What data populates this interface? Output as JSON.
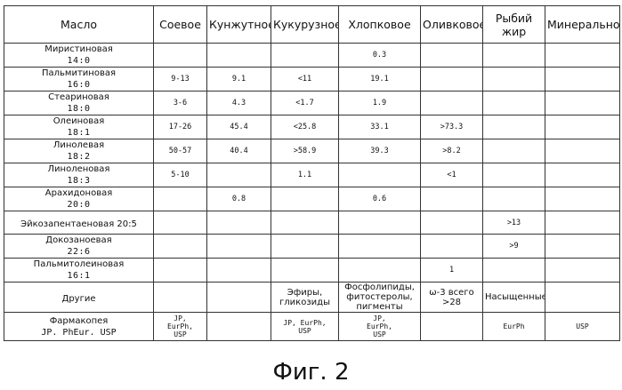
{
  "table": {
    "corner": "Масло",
    "columns": [
      "Соевое",
      "Кунжутное",
      "Кукурузное",
      "Хлопковое",
      "Оливковое",
      "Рыбий жир",
      "Минеральное"
    ],
    "rows": [
      {
        "name": "Миристиновая",
        "code": "14:0",
        "values": [
          "",
          "",
          "",
          "0.3",
          "",
          "",
          ""
        ]
      },
      {
        "name": "Пальмитиновая",
        "code": "16:0",
        "values": [
          "9-13",
          "9.1",
          "<11",
          "19.1",
          "",
          "",
          ""
        ]
      },
      {
        "name": "Стеариновая",
        "code": "18:0",
        "values": [
          "3-6",
          "4.3",
          "<1.7",
          "1.9",
          "",
          "",
          ""
        ]
      },
      {
        "name": "Олеиновая",
        "code": "18:1",
        "values": [
          "17-26",
          "45.4",
          "<25.8",
          "33.1",
          ">73.3",
          "",
          ""
        ]
      },
      {
        "name": "Линолевая",
        "code": "18:2",
        "values": [
          "50-57",
          "40.4",
          ">58.9",
          "39.3",
          ">8.2",
          "",
          ""
        ]
      },
      {
        "name": "Линоленовая",
        "code": "18:3",
        "values": [
          "5-10",
          "",
          "1.1",
          "",
          "<1",
          "",
          ""
        ]
      },
      {
        "name": "Арахидоновая",
        "code": "20:0",
        "values": [
          "",
          "0.8",
          "",
          "0.6",
          "",
          "",
          ""
        ]
      },
      {
        "name": "Эйкозапентаеновая 20:5",
        "code": "",
        "values": [
          "",
          "",
          "",
          "",
          "",
          ">13",
          ""
        ]
      },
      {
        "name": "Докозаноевая",
        "code": "22:6",
        "values": [
          "",
          "",
          "",
          "",
          "",
          ">9",
          ""
        ]
      },
      {
        "name": "Пальмитолеиновая",
        "code": "16:1",
        "values": [
          "",
          "",
          "",
          "",
          "1",
          "",
          ""
        ]
      }
    ],
    "other": {
      "label": "Другие",
      "values": [
        [],
        [],
        [
          "Эфиры,",
          "гликозиды"
        ],
        [
          "Фосфолипиды,",
          "фитостеролы,",
          "пигменты"
        ],
        [
          "ω-3 всего",
          ">28"
        ],
        [
          "Насыщенные"
        ],
        []
      ]
    },
    "pharmacopeia": {
      "label": "Фармакопея",
      "sublabel": "JP. PhEur. USP",
      "values": [
        [
          "JP,",
          "EurPh,",
          "USP"
        ],
        [],
        [
          "JP, EurPh,",
          "USP"
        ],
        [
          "JP,",
          "EurPh,",
          "USP"
        ],
        [],
        [
          "EurPh"
        ],
        [
          "USP"
        ]
      ]
    }
  },
  "caption": "Фиг. 2"
}
